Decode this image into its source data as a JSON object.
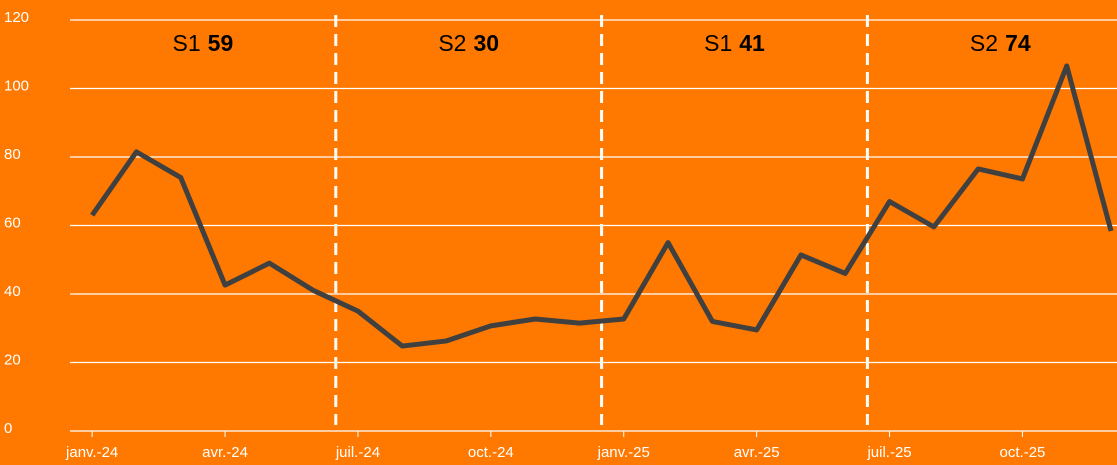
{
  "chart_data": {
    "type": "line",
    "categories": [
      "janv.-24",
      null,
      null,
      "avr.-24",
      null,
      null,
      "juil.-24",
      null,
      null,
      "oct.-24",
      null,
      null,
      "janv.-25",
      null,
      null,
      "avr.-25",
      null,
      null,
      "juil.-25",
      null,
      null,
      "oct.-25",
      null,
      null
    ],
    "series": [
      {
        "color": "#404040",
        "values": [
          63,
          81.5,
          74,
          42.6,
          49,
          41,
          35,
          24.8,
          26.3,
          30.7,
          32.7,
          31.5,
          32.7,
          55,
          32,
          29.5,
          51.4,
          46,
          67,
          59.6,
          76.5,
          73.6,
          106.6,
          58.4
        ]
      }
    ],
    "ylim": [
      0,
      120
    ],
    "yticks": [
      0,
      20,
      40,
      60,
      80,
      100,
      120
    ],
    "grid": true,
    "annotations": [
      {
        "label": "S1",
        "value": 59
      },
      {
        "label": "S2",
        "value": 30
      },
      {
        "label": "S1",
        "value": 41
      },
      {
        "label": "S2",
        "value": 74
      }
    ]
  }
}
